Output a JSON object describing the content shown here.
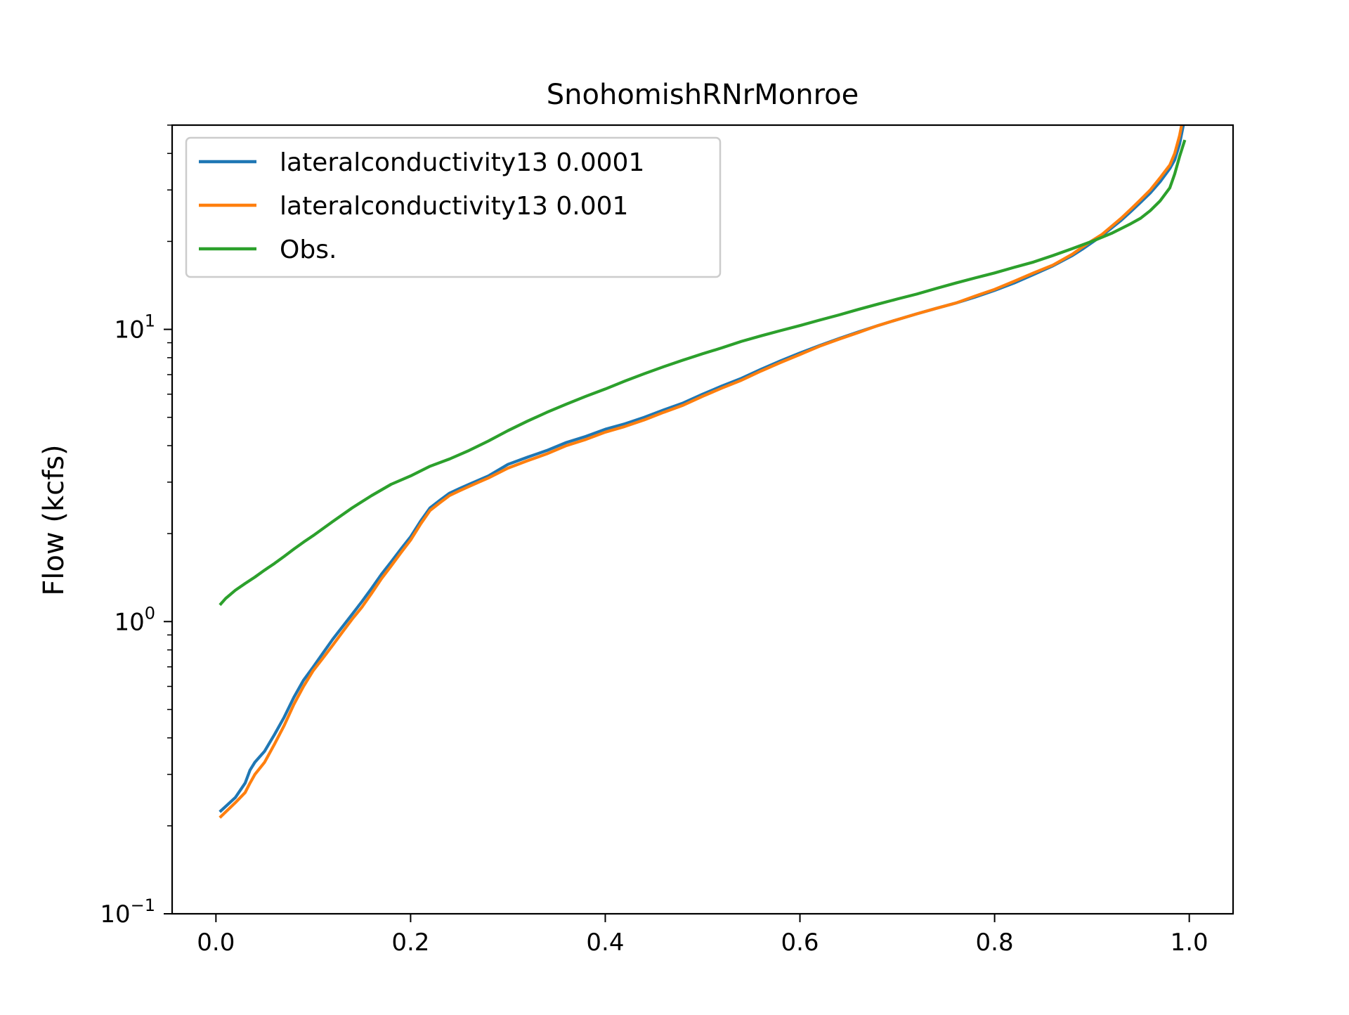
{
  "chart_data": {
    "type": "line",
    "title": "SnohomishRNrMonroe",
    "xlabel": "",
    "ylabel": "Flow (kcfs)",
    "xlim": [
      -0.045,
      1.045
    ],
    "ylim": [
      0.1,
      50
    ],
    "yscale": "log",
    "legend_position": "upper-left",
    "xticks": [
      {
        "value": 0.0,
        "label": "0.0"
      },
      {
        "value": 0.2,
        "label": "0.2"
      },
      {
        "value": 0.4,
        "label": "0.4"
      },
      {
        "value": 0.6,
        "label": "0.6"
      },
      {
        "value": 0.8,
        "label": "0.8"
      },
      {
        "value": 1.0,
        "label": "1.0"
      }
    ],
    "yticks": [
      {
        "value": 0.1,
        "base": "10",
        "exp": "−1"
      },
      {
        "value": 1,
        "base": "10",
        "exp": "0"
      },
      {
        "value": 10,
        "base": "10",
        "exp": "1"
      }
    ],
    "series": [
      {
        "name": "lateralconductivity13 0.0001",
        "color": "#1f77b4",
        "x": [
          0.005,
          0.02,
          0.03,
          0.035,
          0.04,
          0.05,
          0.06,
          0.07,
          0.08,
          0.09,
          0.1,
          0.11,
          0.12,
          0.13,
          0.14,
          0.15,
          0.16,
          0.17,
          0.18,
          0.19,
          0.2,
          0.21,
          0.22,
          0.23,
          0.24,
          0.25,
          0.26,
          0.27,
          0.28,
          0.3,
          0.32,
          0.34,
          0.36,
          0.38,
          0.4,
          0.42,
          0.44,
          0.46,
          0.48,
          0.5,
          0.52,
          0.54,
          0.56,
          0.58,
          0.6,
          0.62,
          0.64,
          0.66,
          0.68,
          0.7,
          0.72,
          0.74,
          0.76,
          0.78,
          0.8,
          0.82,
          0.84,
          0.86,
          0.88,
          0.89,
          0.9,
          0.91,
          0.92,
          0.93,
          0.94,
          0.95,
          0.96,
          0.97,
          0.98,
          0.985,
          0.99,
          0.995
        ],
        "y": [
          0.225,
          0.25,
          0.28,
          0.31,
          0.33,
          0.36,
          0.41,
          0.47,
          0.55,
          0.63,
          0.7,
          0.78,
          0.87,
          0.96,
          1.06,
          1.17,
          1.3,
          1.45,
          1.6,
          1.77,
          1.95,
          2.2,
          2.45,
          2.6,
          2.75,
          2.85,
          2.95,
          3.05,
          3.15,
          3.45,
          3.65,
          3.85,
          4.1,
          4.3,
          4.55,
          4.75,
          5.0,
          5.3,
          5.6,
          6.0,
          6.4,
          6.8,
          7.3,
          7.8,
          8.3,
          8.8,
          9.3,
          9.8,
          10.3,
          10.8,
          11.3,
          11.8,
          12.3,
          12.9,
          13.6,
          14.4,
          15.4,
          16.5,
          17.9,
          18.8,
          19.8,
          20.9,
          22.2,
          23.6,
          25.3,
          27.2,
          29.3,
          32.0,
          35.5,
          38.0,
          43.0,
          52.0
        ]
      },
      {
        "name": "lateralconductivity13 0.001",
        "color": "#ff7f0e",
        "x": [
          0.005,
          0.02,
          0.03,
          0.035,
          0.04,
          0.05,
          0.06,
          0.07,
          0.08,
          0.09,
          0.1,
          0.11,
          0.12,
          0.13,
          0.14,
          0.15,
          0.16,
          0.17,
          0.18,
          0.19,
          0.2,
          0.21,
          0.22,
          0.23,
          0.24,
          0.25,
          0.26,
          0.27,
          0.28,
          0.3,
          0.32,
          0.34,
          0.36,
          0.38,
          0.4,
          0.42,
          0.44,
          0.46,
          0.48,
          0.5,
          0.52,
          0.54,
          0.56,
          0.58,
          0.6,
          0.62,
          0.64,
          0.66,
          0.68,
          0.7,
          0.72,
          0.74,
          0.76,
          0.78,
          0.8,
          0.82,
          0.84,
          0.86,
          0.88,
          0.89,
          0.9,
          0.91,
          0.92,
          0.93,
          0.94,
          0.95,
          0.96,
          0.97,
          0.98,
          0.985,
          0.99,
          0.995
        ],
        "y": [
          0.215,
          0.24,
          0.26,
          0.28,
          0.3,
          0.33,
          0.38,
          0.44,
          0.52,
          0.6,
          0.68,
          0.75,
          0.83,
          0.92,
          1.02,
          1.12,
          1.25,
          1.4,
          1.55,
          1.72,
          1.9,
          2.15,
          2.4,
          2.55,
          2.7,
          2.8,
          2.9,
          3.0,
          3.1,
          3.35,
          3.55,
          3.75,
          4.0,
          4.2,
          4.45,
          4.65,
          4.9,
          5.2,
          5.5,
          5.9,
          6.3,
          6.7,
          7.2,
          7.7,
          8.2,
          8.75,
          9.25,
          9.75,
          10.3,
          10.8,
          11.3,
          11.8,
          12.3,
          13.0,
          13.7,
          14.6,
          15.6,
          16.6,
          18.1,
          19.1,
          20.1,
          21.1,
          22.5,
          24.0,
          25.8,
          27.8,
          30.0,
          33.0,
          36.5,
          40.0,
          46.0,
          56.0
        ]
      },
      {
        "name": "Obs.",
        "color": "#2ca02c",
        "x": [
          0.005,
          0.01,
          0.02,
          0.03,
          0.04,
          0.05,
          0.06,
          0.07,
          0.08,
          0.09,
          0.1,
          0.12,
          0.14,
          0.16,
          0.18,
          0.2,
          0.22,
          0.24,
          0.26,
          0.28,
          0.3,
          0.32,
          0.34,
          0.36,
          0.38,
          0.4,
          0.42,
          0.44,
          0.46,
          0.48,
          0.5,
          0.52,
          0.54,
          0.56,
          0.58,
          0.6,
          0.62,
          0.64,
          0.66,
          0.68,
          0.7,
          0.72,
          0.74,
          0.76,
          0.78,
          0.8,
          0.82,
          0.84,
          0.86,
          0.88,
          0.9,
          0.92,
          0.94,
          0.95,
          0.96,
          0.97,
          0.98,
          0.985,
          0.99,
          0.995
        ],
        "y": [
          1.15,
          1.2,
          1.28,
          1.35,
          1.42,
          1.5,
          1.58,
          1.67,
          1.77,
          1.87,
          1.97,
          2.2,
          2.45,
          2.7,
          2.95,
          3.15,
          3.4,
          3.6,
          3.85,
          4.15,
          4.5,
          4.85,
          5.2,
          5.55,
          5.9,
          6.25,
          6.65,
          7.05,
          7.45,
          7.85,
          8.25,
          8.65,
          9.1,
          9.5,
          9.9,
          10.3,
          10.75,
          11.2,
          11.7,
          12.2,
          12.7,
          13.2,
          13.8,
          14.4,
          15.0,
          15.6,
          16.3,
          17.0,
          17.9,
          18.9,
          20.0,
          21.3,
          23.0,
          24.0,
          25.5,
          27.5,
          30.5,
          34.0,
          39.0,
          44.0
        ]
      }
    ]
  }
}
